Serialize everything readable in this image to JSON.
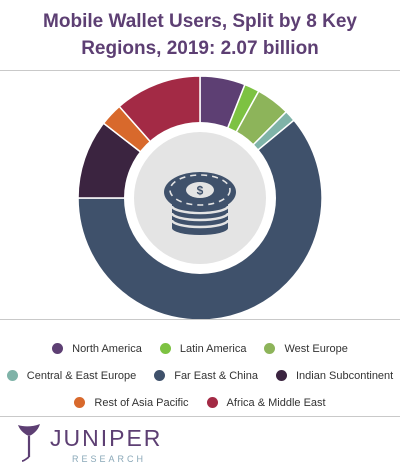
{
  "title_line1": "Mobile Wallet Users, Split by 8 Key",
  "title_line2": "Regions, 2019: 2.07 billion",
  "chart_data": {
    "type": "pie",
    "title": "Mobile Wallet Users, Split by 8 Key Regions, 2019: 2.07 billion",
    "categories": [
      "North America",
      "Latin America",
      "West Europe",
      "Central & East Europe",
      "Far East & China",
      "Indian Subcontinent",
      "Rest of Asia Pacific",
      "Africa & Middle East"
    ],
    "values": [
      6.0,
      2.0,
      4.5,
      1.5,
      61.0,
      10.5,
      3.0,
      11.5
    ],
    "colors": [
      "#5d3f73",
      "#7dc242",
      "#8db45a",
      "#7fb3a8",
      "#3f516b",
      "#3b2440",
      "#d8692c",
      "#a32a45"
    ],
    "legend_position": "bottom",
    "hole": "donut"
  },
  "legend_rows": [
    [
      {
        "label": "North America",
        "color": "#5d3f73"
      },
      {
        "label": "Latin America",
        "color": "#7dc242"
      },
      {
        "label": "West Europe",
        "color": "#8db45a"
      }
    ],
    [
      {
        "label": "Central & East Europe",
        "color": "#7fb3a8"
      },
      {
        "label": "Far East & China",
        "color": "#3f516b"
      },
      {
        "label": "Indian Subcontinent",
        "color": "#3b2440"
      }
    ],
    [
      {
        "label": "Rest of Asia Pacific",
        "color": "#d8692c"
      },
      {
        "label": "Africa & Middle East",
        "color": "#a32a45"
      }
    ]
  ],
  "center_icon": "coin-stack-icon",
  "logo": {
    "word": "JUNIPER",
    "sub": "RESEARCH",
    "icon": "juniper-leaf-icon"
  }
}
